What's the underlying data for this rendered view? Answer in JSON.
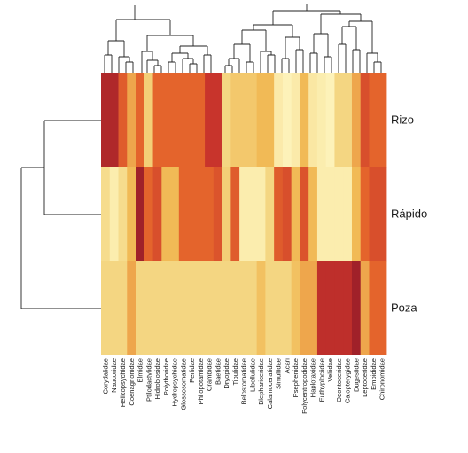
{
  "chart_data": {
    "type": "heatmap",
    "title": "",
    "xlabel": "",
    "ylabel": "",
    "rows": [
      "Rizo",
      "Rápido",
      "Poza"
    ],
    "columns": [
      "Corydalidae",
      "Naucoridae",
      "Helicopsychidae",
      "Coenagrionidae",
      "Elmidae",
      "Ptilodactylidae",
      "Hidrobiosidae",
      "Polythoridae",
      "Hydropsychidae",
      "Glossosomatidae",
      "Perlidae",
      "Philopotamidae",
      "Crambidae",
      "Baetidae",
      "Dryopidae",
      "Tipulidae",
      "Belostomatidae",
      "Libellulidae",
      "Blephariceridae",
      "Calamoceratidae",
      "Simuliidae",
      "Acari",
      "Psephenidae",
      "Polycentropodidae",
      "Haplotaxidae",
      "Euthyplociidae",
      "Veliidae",
      "Odontoceridae",
      "Calopterygidae",
      "Dugesiidae",
      "Leptoceridae",
      "Empididae",
      "Chironomidae"
    ],
    "value_scale": "relative abundance, 0 = low (pale yellow) to 1 = high (dark red)",
    "values": [
      [
        0.95,
        0.95,
        0.75,
        0.55,
        0.72,
        0.35,
        0.72,
        0.72,
        0.72,
        0.72,
        0.72,
        0.72,
        0.9,
        0.9,
        0.3,
        0.4,
        0.4,
        0.4,
        0.5,
        0.5,
        0.12,
        0.05,
        0.12,
        0.5,
        0.15,
        0.1,
        0.05,
        0.3,
        0.3,
        0.55,
        0.8,
        0.72,
        0.72
      ],
      [
        0.25,
        0.1,
        0.25,
        0.5,
        0.98,
        0.72,
        0.8,
        0.5,
        0.5,
        0.72,
        0.72,
        0.72,
        0.72,
        0.78,
        0.35,
        0.75,
        0.1,
        0.1,
        0.1,
        0.3,
        0.75,
        0.8,
        0.5,
        0.78,
        0.5,
        0.1,
        0.1,
        0.1,
        0.1,
        0.5,
        0.72,
        0.8,
        0.8
      ],
      [
        0.3,
        0.3,
        0.3,
        0.55,
        0.3,
        0.3,
        0.3,
        0.3,
        0.3,
        0.3,
        0.3,
        0.3,
        0.3,
        0.3,
        0.3,
        0.3,
        0.3,
        0.3,
        0.45,
        0.3,
        0.3,
        0.3,
        0.45,
        0.55,
        0.55,
        0.92,
        0.92,
        0.92,
        0.92,
        0.98,
        0.55,
        0.72,
        0.72
      ]
    ],
    "legend": "none",
    "grid": false
  }
}
